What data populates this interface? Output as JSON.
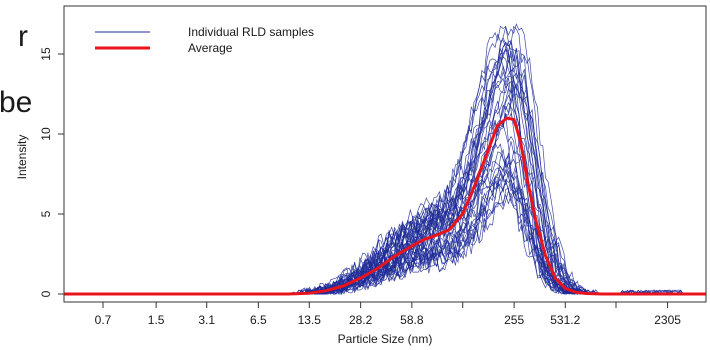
{
  "chart_data": {
    "type": "line",
    "xlabel": "Particle Size (nm)",
    "ylabel": "Intensity",
    "x_scale": "log",
    "xlim": [
      0.4,
      4000
    ],
    "ylim": [
      -0.5,
      18
    ],
    "x_ticks": [
      {
        "value": 0.7,
        "label": "0.7"
      },
      {
        "value": 1.5,
        "label": "1.5"
      },
      {
        "value": 3.1,
        "label": "3.1"
      },
      {
        "value": 6.5,
        "label": "6.5"
      },
      {
        "value": 13.5,
        "label": "13.5"
      },
      {
        "value": 28.2,
        "label": "28.2"
      },
      {
        "value": 58.8,
        "label": "58.8"
      },
      {
        "value": 122,
        "label": ""
      },
      {
        "value": 255,
        "label": "255"
      },
      {
        "value": 531.2,
        "label": "531.2"
      },
      {
        "value": 1100,
        "label": ""
      },
      {
        "value": 2305,
        "label": "2305"
      }
    ],
    "y_ticks": [
      0,
      5,
      10,
      15
    ],
    "legend": {
      "placement": "top-left"
    },
    "legend_entries": [
      {
        "name": "Individual RLD samples",
        "color": "#1f2c98"
      },
      {
        "name": "Average",
        "color": "#e8141d"
      }
    ],
    "average": {
      "name": "Average",
      "color": "#e8141d",
      "x": [
        0.4,
        10,
        13.5,
        17,
        22,
        28.2,
        36,
        45,
        58.8,
        70,
        85,
        100,
        122,
        145,
        170,
        200,
        230,
        255,
        280,
        310,
        350,
        400,
        460,
        531.2,
        620,
        720,
        900,
        1100,
        1500,
        2305,
        3000,
        4000
      ],
      "y": [
        0,
        0,
        0.05,
        0.2,
        0.5,
        1.0,
        1.6,
        2.3,
        3.0,
        3.4,
        3.7,
        4.0,
        5.0,
        6.8,
        8.6,
        10.5,
        11.0,
        10.9,
        9.5,
        7.0,
        4.5,
        2.4,
        1.0,
        0.35,
        0.1,
        0.03,
        0,
        0,
        0,
        0,
        0,
        0
      ]
    },
    "individual_samples": {
      "name": "Individual RLD samples",
      "color": "#1f2c98",
      "count": 40
    }
  },
  "overlay": {
    "text_1": "r",
    "text_2": "be"
  }
}
